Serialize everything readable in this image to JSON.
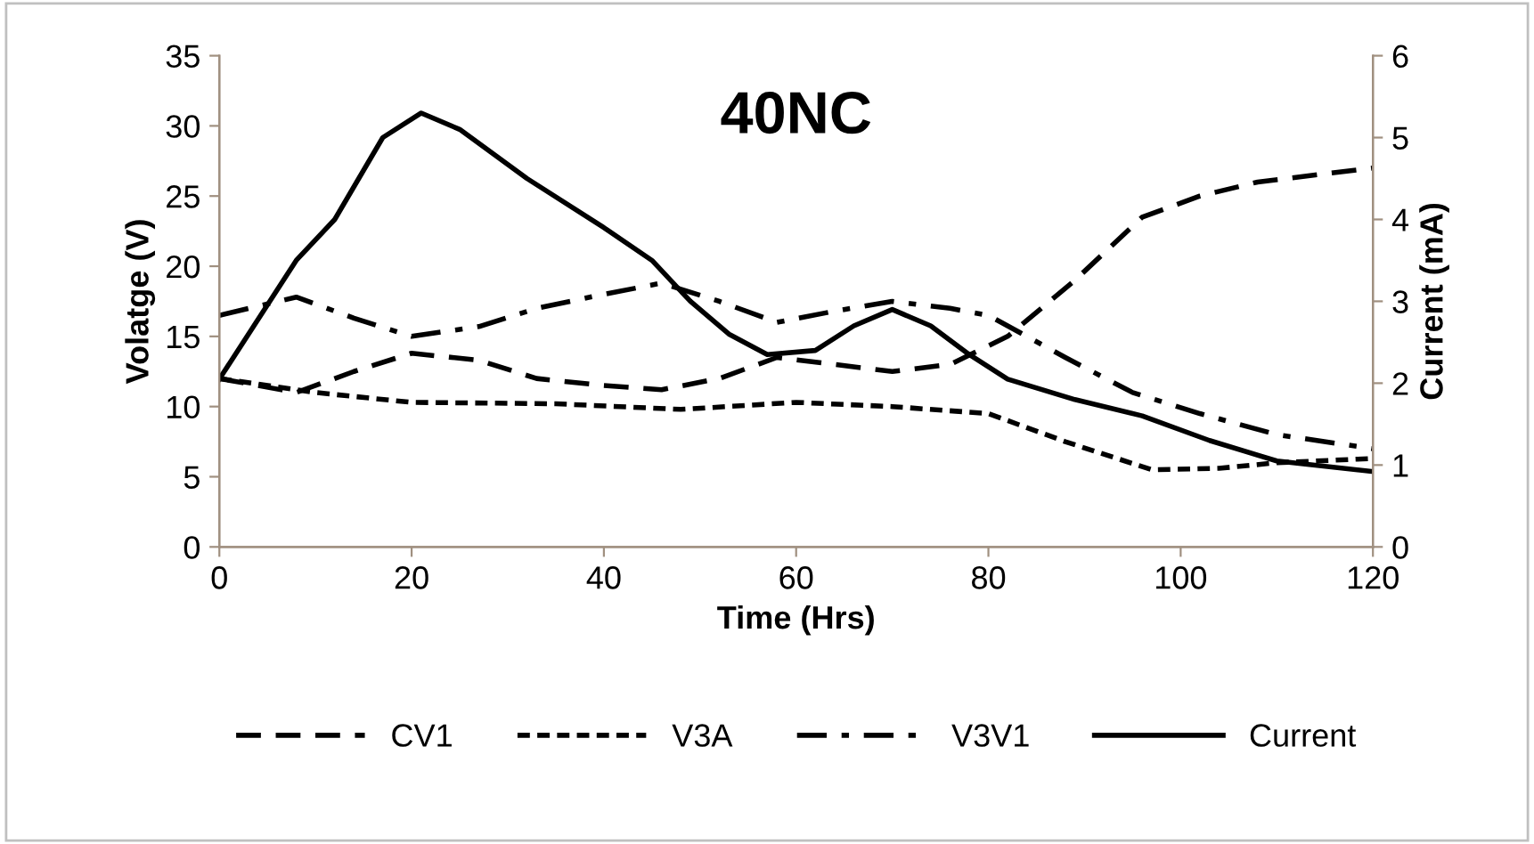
{
  "chart_data": {
    "type": "line",
    "title": "40NC",
    "xlabel": "Time (Hrs)",
    "ylabel": "Volatge (V)",
    "y2label": "Current (mA)",
    "xlim": [
      0,
      120
    ],
    "xticks": [
      0,
      20,
      40,
      60,
      80,
      100,
      120
    ],
    "ylim": [
      0,
      35
    ],
    "yticks": [
      0,
      5,
      10,
      15,
      20,
      25,
      30,
      35
    ],
    "y2lim": [
      0,
      6
    ],
    "y2ticks": [
      0,
      1,
      2,
      3,
      4,
      5,
      6
    ],
    "grid": false,
    "legend": "bottom",
    "marker": "none",
    "series": [
      {
        "name": "CV1",
        "color": "#000000",
        "line_style": "dashed",
        "x": [
          0,
          8,
          14,
          20,
          27,
          33,
          40,
          46,
          52,
          58,
          64,
          70,
          76,
          82,
          89,
          96,
          102,
          108,
          114,
          120
        ],
        "values": [
          12,
          11,
          12.5,
          13.8,
          13.3,
          12,
          11.5,
          11.2,
          12,
          13.5,
          13,
          12.5,
          13,
          15,
          19,
          23.5,
          25,
          26,
          26.5,
          27
        ]
      },
      {
        "name": "V3A",
        "color": "#000000",
        "line_style": "dotted",
        "x": [
          0,
          10,
          20,
          35,
          48,
          60,
          70,
          80,
          88,
          97,
          104,
          110,
          120
        ],
        "values": [
          12,
          11,
          10.3,
          10.2,
          9.8,
          10.3,
          10,
          9.5,
          7.5,
          5.5,
          5.6,
          6,
          6.3
        ]
      },
      {
        "name": "V3V1",
        "color": "#000000",
        "line_style": "dashdot",
        "x": [
          0,
          8,
          14,
          20,
          27,
          33,
          40,
          46,
          52,
          58,
          64,
          70,
          76,
          80,
          88,
          95,
          102,
          110,
          120
        ],
        "values": [
          16.5,
          17.8,
          16.3,
          15,
          15.7,
          17,
          18,
          18.8,
          17.5,
          16,
          16.8,
          17.5,
          17,
          16.5,
          13.5,
          11,
          9.5,
          8,
          7
        ]
      },
      {
        "name": "Current",
        "color": "#000000",
        "line_style": "solid",
        "axis": "y2",
        "x": [
          0,
          8,
          12,
          17,
          21,
          25,
          32,
          40,
          45,
          49,
          53,
          57,
          62,
          66,
          70,
          74,
          78,
          82,
          89,
          96,
          103,
          110,
          120
        ],
        "values": [
          2.05,
          3.5,
          4.0,
          5.0,
          5.3,
          5.1,
          4.5,
          3.9,
          3.5,
          3.0,
          2.6,
          2.35,
          2.4,
          2.7,
          2.9,
          2.7,
          2.35,
          2.05,
          1.8,
          1.6,
          1.3,
          1.05,
          0.92
        ]
      }
    ]
  }
}
